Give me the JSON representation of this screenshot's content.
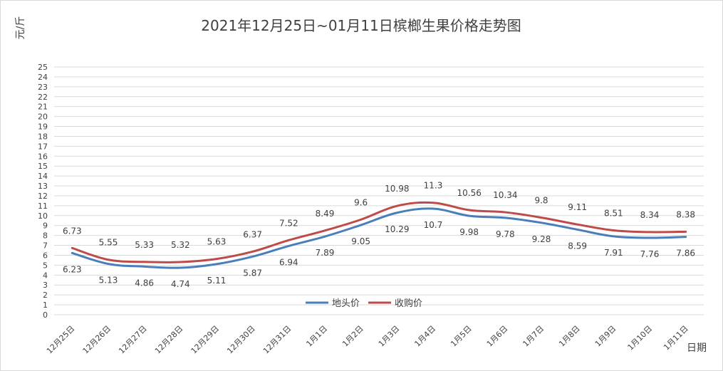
{
  "chart_data": {
    "type": "line",
    "title": "2021年12月25日~01月11日槟榔生果价格走势图",
    "ylabel": "元/斤",
    "xlabel": "日期",
    "ylim": [
      0,
      25
    ],
    "y_ticks": [
      0,
      1,
      2,
      3,
      4,
      5,
      6,
      7,
      8,
      9,
      10,
      11,
      12,
      13,
      14,
      15,
      16,
      17,
      18,
      19,
      20,
      21,
      22,
      23,
      24,
      25
    ],
    "grid": true,
    "legend_position": "bottom-center",
    "categories": [
      "12月25日",
      "12月26日",
      "12月27日",
      "12月28日",
      "12月29日",
      "12月30日",
      "12月31日",
      "1月1日",
      "1月2日",
      "1月3日",
      "1月4日",
      "1月5日",
      "1月6日",
      "1月7日",
      "1月8日",
      "1月9日",
      "1月10日",
      "1月11日"
    ],
    "series": [
      {
        "name": "地头价",
        "color": "#4a7ebb",
        "values": [
          6.23,
          5.13,
          4.86,
          4.74,
          5.11,
          5.87,
          6.94,
          7.89,
          9.05,
          10.29,
          10.7,
          9.98,
          9.78,
          9.28,
          8.59,
          7.91,
          7.76,
          7.86
        ]
      },
      {
        "name": "收购价",
        "color": "#be4b48",
        "values": [
          6.73,
          5.55,
          5.33,
          5.32,
          5.63,
          6.37,
          7.52,
          8.49,
          9.6,
          10.98,
          11.3,
          10.56,
          10.34,
          9.8,
          9.11,
          8.51,
          8.34,
          8.38
        ]
      }
    ]
  }
}
